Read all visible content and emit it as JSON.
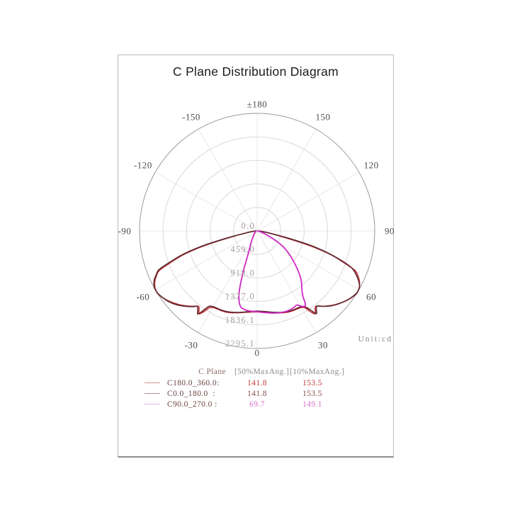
{
  "title": "C Plane Distribution Diagram",
  "unit_label": "Unit:cd",
  "polar": {
    "angle_labels": [
      {
        "text": "±180",
        "deg": 180,
        "r": 179
      },
      {
        "text": "150",
        "deg": 150,
        "r": 186
      },
      {
        "text": "120",
        "deg": 120,
        "r": 186
      },
      {
        "text": "90",
        "deg": 90,
        "r": 187
      },
      {
        "text": "60",
        "deg": 60,
        "r": 186
      },
      {
        "text": "30",
        "deg": 30,
        "r": 186
      },
      {
        "text": "0",
        "deg": 0,
        "r": 172
      },
      {
        "text": "-30",
        "deg": -30,
        "r": 186
      },
      {
        "text": "-60",
        "deg": -60,
        "r": 186
      },
      {
        "text": "-90",
        "deg": -90,
        "r": 187
      },
      {
        "text": "-120",
        "deg": -120,
        "r": 186
      },
      {
        "text": "-150",
        "deg": -150,
        "r": 186
      }
    ],
    "radial_tick_labels": [
      "0.0",
      "459.0",
      "918.0",
      "1377.0",
      "1836.1",
      "2295.1"
    ]
  },
  "chart_data": {
    "type": "line",
    "subtype": "polar-intensity-distribution",
    "title": "C Plane Distribution Diagram",
    "unit": "cd",
    "angle_axis": {
      "zero_position": "bottom",
      "tick_step_deg": 30,
      "tick_labels": [
        "±180",
        "150",
        "120",
        "90",
        "60",
        "30",
        "0",
        "-30",
        "-60",
        "-90",
        "-120",
        "-150"
      ]
    },
    "r_axis": {
      "min": 0,
      "max": 2295.1,
      "ticks": [
        0.0,
        459.0,
        918.0,
        1377.0,
        1836.1,
        2295.1
      ]
    },
    "grid": true,
    "series": [
      {
        "name": "C180.0_360.0",
        "color": "#c02a32",
        "points": [
          [
            -90,
            20
          ],
          [
            -87,
            45
          ],
          [
            -84,
            90
          ],
          [
            -81,
            170
          ],
          [
            -79,
            280
          ],
          [
            -77,
            480
          ],
          [
            -75.5,
            780
          ],
          [
            -74,
            1150
          ],
          [
            -72,
            1530
          ],
          [
            -70,
            1790
          ],
          [
            -68,
            2060
          ],
          [
            -66,
            2150
          ],
          [
            -64,
            2220
          ],
          [
            -62,
            2265
          ],
          [
            -60,
            2290
          ],
          [
            -58,
            2295
          ],
          [
            -56,
            2275
          ],
          [
            -54,
            2245
          ],
          [
            -52,
            2210
          ],
          [
            -50,
            2170
          ],
          [
            -48,
            2125
          ],
          [
            -46,
            2080
          ],
          [
            -44,
            2030
          ],
          [
            -42,
            1975
          ],
          [
            -40,
            1920
          ],
          [
            -38,
            1865
          ],
          [
            -36.5,
            1905
          ],
          [
            -35,
            1975
          ],
          [
            -33.5,
            1890
          ],
          [
            -32,
            1770
          ],
          [
            -30,
            1725
          ],
          [
            -27,
            1712
          ],
          [
            -24,
            1705
          ],
          [
            -21,
            1697
          ],
          [
            -18,
            1678
          ],
          [
            -15,
            1655
          ],
          [
            -12,
            1632
          ],
          [
            -9,
            1610
          ],
          [
            -6,
            1595
          ],
          [
            -3,
            1585
          ],
          [
            0,
            1580
          ],
          [
            3,
            1585
          ],
          [
            6,
            1595
          ],
          [
            9,
            1610
          ],
          [
            12,
            1632
          ],
          [
            15,
            1655
          ],
          [
            18,
            1678
          ],
          [
            21,
            1697
          ],
          [
            24,
            1705
          ],
          [
            27,
            1712
          ],
          [
            30,
            1725
          ],
          [
            32,
            1770
          ],
          [
            33.5,
            1890
          ],
          [
            35,
            1975
          ],
          [
            36.5,
            1905
          ],
          [
            38,
            1865
          ],
          [
            40,
            1920
          ],
          [
            42,
            1975
          ],
          [
            44,
            2030
          ],
          [
            46,
            2080
          ],
          [
            48,
            2125
          ],
          [
            50,
            2170
          ],
          [
            52,
            2210
          ],
          [
            54,
            2245
          ],
          [
            56,
            2275
          ],
          [
            58,
            2295
          ],
          [
            60,
            2290
          ],
          [
            62,
            2265
          ],
          [
            64,
            2220
          ],
          [
            66,
            2150
          ],
          [
            68,
            2060
          ],
          [
            70,
            1790
          ],
          [
            72,
            1530
          ],
          [
            74,
            1150
          ],
          [
            75.5,
            780
          ],
          [
            77,
            480
          ],
          [
            79,
            280
          ],
          [
            81,
            170
          ],
          [
            84,
            90
          ],
          [
            87,
            45
          ],
          [
            90,
            20
          ]
        ]
      },
      {
        "name": "C0.0_180.0",
        "color": "#5d2b31",
        "points": [
          [
            -90,
            18
          ],
          [
            -87,
            42
          ],
          [
            -84,
            85
          ],
          [
            -81,
            160
          ],
          [
            -79,
            265
          ],
          [
            -77.5,
            460
          ],
          [
            -76,
            760
          ],
          [
            -74.5,
            1130
          ],
          [
            -72.5,
            1510
          ],
          [
            -70.5,
            1780
          ],
          [
            -68.5,
            2055
          ],
          [
            -66.5,
            2150
          ],
          [
            -64.5,
            2225
          ],
          [
            -62.5,
            2270
          ],
          [
            -60.5,
            2295
          ],
          [
            -58,
            2290
          ],
          [
            -55,
            2260
          ],
          [
            -52,
            2220
          ],
          [
            -49,
            2165
          ],
          [
            -46,
            2095
          ],
          [
            -43,
            2015
          ],
          [
            -40,
            1930
          ],
          [
            -38.5,
            1880
          ],
          [
            -37,
            1925
          ],
          [
            -35.5,
            1990
          ],
          [
            -34,
            1865
          ],
          [
            -32.5,
            1745
          ],
          [
            -30,
            1708
          ],
          [
            -26,
            1698
          ],
          [
            -22,
            1688
          ],
          [
            -18,
            1668
          ],
          [
            -14,
            1640
          ],
          [
            -10,
            1610
          ],
          [
            -5,
            1578
          ],
          [
            0,
            1565
          ],
          [
            5,
            1578
          ],
          [
            10,
            1610
          ],
          [
            14,
            1640
          ],
          [
            18,
            1668
          ],
          [
            22,
            1688
          ],
          [
            26,
            1698
          ],
          [
            29,
            1705
          ],
          [
            32,
            1740
          ],
          [
            34,
            1860
          ],
          [
            35.5,
            1985
          ],
          [
            37,
            1920
          ],
          [
            38.5,
            1875
          ],
          [
            41,
            1950
          ],
          [
            44,
            2040
          ],
          [
            47,
            2110
          ],
          [
            50,
            2170
          ],
          [
            53,
            2225
          ],
          [
            56,
            2268
          ],
          [
            58.5,
            2292
          ],
          [
            61,
            2282
          ],
          [
            63,
            2235
          ],
          [
            66,
            2120
          ],
          [
            69,
            1950
          ],
          [
            72,
            1560
          ],
          [
            74.5,
            1150
          ],
          [
            76.5,
            700
          ],
          [
            78.5,
            380
          ],
          [
            81,
            200
          ],
          [
            84,
            100
          ],
          [
            87,
            48
          ],
          [
            90,
            18
          ]
        ]
      },
      {
        "name": "C90.0_270.0",
        "color": "#cf28c4",
        "points": [
          [
            -90,
            5
          ],
          [
            -80,
            12
          ],
          [
            -70,
            22
          ],
          [
            -60,
            38
          ],
          [
            -50,
            60
          ],
          [
            -42,
            90
          ],
          [
            -36,
            130
          ],
          [
            -31,
            185
          ],
          [
            -27,
            255
          ],
          [
            -24,
            340
          ],
          [
            -22,
            430
          ],
          [
            -20.5,
            560
          ],
          [
            -19.5,
            720
          ],
          [
            -18.5,
            900
          ],
          [
            -17.5,
            1070
          ],
          [
            -16.5,
            1220
          ],
          [
            -15.5,
            1330
          ],
          [
            -14,
            1440
          ],
          [
            -12,
            1520
          ],
          [
            -9,
            1555
          ],
          [
            -6,
            1568
          ],
          [
            -3,
            1574
          ],
          [
            0,
            1578
          ],
          [
            4,
            1595
          ],
          [
            8,
            1615
          ],
          [
            12,
            1640
          ],
          [
            16,
            1660
          ],
          [
            20,
            1670
          ],
          [
            23,
            1668
          ],
          [
            26,
            1655
          ],
          [
            28,
            1640
          ],
          [
            30,
            1690
          ],
          [
            32,
            1745
          ],
          [
            33.5,
            1700
          ],
          [
            35,
            1560
          ],
          [
            37,
            1455
          ],
          [
            39,
            1385
          ],
          [
            41,
            1315
          ],
          [
            43,
            1240
          ],
          [
            45,
            1150
          ],
          [
            47,
            1060
          ],
          [
            50,
            935
          ],
          [
            53,
            815
          ],
          [
            56,
            700
          ],
          [
            59,
            580
          ],
          [
            62,
            440
          ],
          [
            65,
            300
          ],
          [
            68,
            195
          ],
          [
            72,
            115
          ],
          [
            76,
            65
          ],
          [
            80,
            38
          ],
          [
            85,
            15
          ],
          [
            90,
            5
          ]
        ]
      }
    ]
  },
  "legend": {
    "header_plane": "C Plane",
    "header_50": "[50%MaxAng.]",
    "header_10": "[10%MaxAng.]",
    "rows": [
      {
        "label": "C180.0_360.0:",
        "max50": "141.8",
        "max10": "153.5",
        "swatch_color": "#d29090",
        "value_color": "#c23a3a"
      },
      {
        "label": "C0.0_180.0  :",
        "max50": "141.8",
        "max10": "153.5",
        "swatch_color": "#ab9193",
        "value_color": "#8a4848"
      },
      {
        "label": "C90.0_270.0 :",
        "max50": "69.7",
        "max10": "149.1",
        "swatch_color": "#e3b7de",
        "value_color": "#d66fc8"
      }
    ]
  }
}
